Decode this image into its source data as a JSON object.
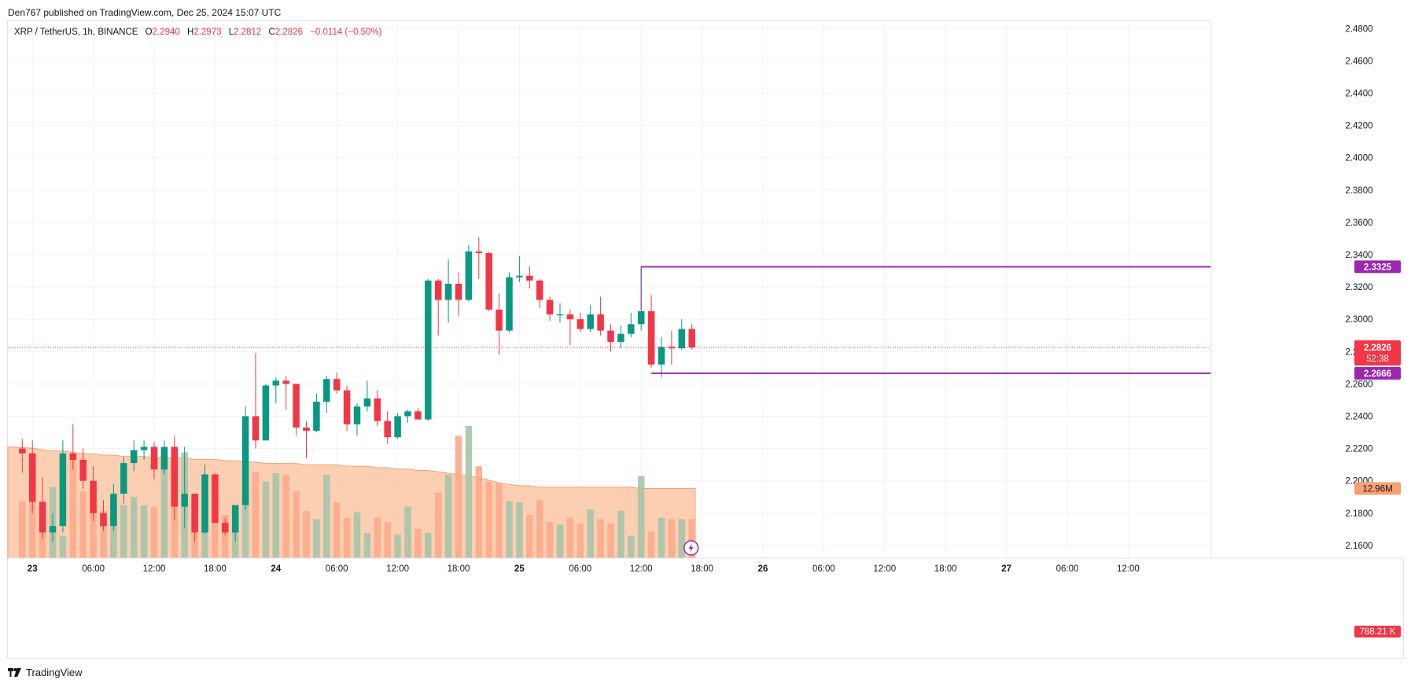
{
  "header": {
    "published_by": "Den767 published on TradingView.com, Dec 25, 2024 15:07 UTC"
  },
  "legend": {
    "symbol": "XRP / TetherUS, 1h, BINANCE",
    "o_label": "O",
    "o_value": "2.2940",
    "h_label": "H",
    "h_value": "2.2973",
    "l_label": "L",
    "l_value": "2.2812",
    "c_label": "C",
    "c_value": "2.2826",
    "change": "−0.0114 (−0.50%)"
  },
  "footer": {
    "brand": "TradingView",
    "logo_icon": "tradingview-logo-icon"
  },
  "colors": {
    "up": "#089981",
    "down": "#f23645",
    "level_line": "#9c27b0",
    "volume_up": "#a7c4a8",
    "volume_down": "#fcab8a",
    "volume_ma_fill": "#fcc7a6",
    "grid": "#f0f3fa",
    "price_line": "#f23645"
  },
  "chart_data": {
    "type": "candlestick",
    "symbol": "XRP / TetherUS",
    "timeframe": "1h",
    "exchange": "BINANCE",
    "y_ticks": [
      "2.1600",
      "2.1800",
      "2.2000",
      "2.2200",
      "2.2400",
      "2.2600",
      "2.2800",
      "2.3000",
      "2.3200",
      "2.3400",
      "2.3600",
      "2.3800",
      "2.4000",
      "2.4200",
      "2.4400",
      "2.4600",
      "2.4800"
    ],
    "ylim": [
      2.16,
      2.48
    ],
    "x_ticks": [
      {
        "label": "23",
        "bar": 1
      },
      {
        "label": "06:00",
        "bar": 7
      },
      {
        "label": "12:00",
        "bar": 13
      },
      {
        "label": "18:00",
        "bar": 19
      },
      {
        "label": "24",
        "bar": 25
      },
      {
        "label": "06:00",
        "bar": 31
      },
      {
        "label": "12:00",
        "bar": 37
      },
      {
        "label": "18:00",
        "bar": 43
      },
      {
        "label": "25",
        "bar": 49
      },
      {
        "label": "06:00",
        "bar": 55
      },
      {
        "label": "12:00",
        "bar": 61
      },
      {
        "label": "18:00",
        "bar": 67
      },
      {
        "label": "26",
        "bar": 73
      },
      {
        "label": "06:00",
        "bar": 79
      },
      {
        "label": "12:00",
        "bar": 85
      },
      {
        "label": "18:00",
        "bar": 91
      },
      {
        "label": "27",
        "bar": 97
      },
      {
        "label": "06:00",
        "bar": 103
      },
      {
        "label": "12:00",
        "bar": 109
      }
    ],
    "candles": [
      {
        "o": 2.22,
        "h": 2.226,
        "l": 2.205,
        "c": 2.217
      },
      {
        "o": 2.217,
        "h": 2.225,
        "l": 2.18,
        "c": 2.187
      },
      {
        "o": 2.187,
        "h": 2.202,
        "l": 2.164,
        "c": 2.168
      },
      {
        "o": 2.168,
        "h": 2.18,
        "l": 2.162,
        "c": 2.172
      },
      {
        "o": 2.172,
        "h": 2.225,
        "l": 2.168,
        "c": 2.217
      },
      {
        "o": 2.217,
        "h": 2.235,
        "l": 2.207,
        "c": 2.213
      },
      {
        "o": 2.213,
        "h": 2.22,
        "l": 2.195,
        "c": 2.2
      },
      {
        "o": 2.2,
        "h": 2.209,
        "l": 2.175,
        "c": 2.18
      },
      {
        "o": 2.18,
        "h": 2.188,
        "l": 2.169,
        "c": 2.172
      },
      {
        "o": 2.172,
        "h": 2.198,
        "l": 2.169,
        "c": 2.192
      },
      {
        "o": 2.192,
        "h": 2.215,
        "l": 2.186,
        "c": 2.211
      },
      {
        "o": 2.211,
        "h": 2.225,
        "l": 2.206,
        "c": 2.219
      },
      {
        "o": 2.219,
        "h": 2.225,
        "l": 2.213,
        "c": 2.221
      },
      {
        "o": 2.221,
        "h": 2.224,
        "l": 2.201,
        "c": 2.207
      },
      {
        "o": 2.207,
        "h": 2.225,
        "l": 2.204,
        "c": 2.221
      },
      {
        "o": 2.221,
        "h": 2.228,
        "l": 2.176,
        "c": 2.184
      },
      {
        "o": 2.184,
        "h": 2.221,
        "l": 2.171,
        "c": 2.192
      },
      {
        "o": 2.192,
        "h": 2.192,
        "l": 2.162,
        "c": 2.168
      },
      {
        "o": 2.168,
        "h": 2.21,
        "l": 2.167,
        "c": 2.204
      },
      {
        "o": 2.204,
        "h": 2.205,
        "l": 2.174,
        "c": 2.174
      },
      {
        "o": 2.174,
        "h": 2.177,
        "l": 2.166,
        "c": 2.168
      },
      {
        "o": 2.168,
        "h": 2.185,
        "l": 2.162,
        "c": 2.185
      },
      {
        "o": 2.185,
        "h": 2.246,
        "l": 2.182,
        "c": 2.24
      },
      {
        "o": 2.24,
        "h": 2.279,
        "l": 2.22,
        "c": 2.225
      },
      {
        "o": 2.225,
        "h": 2.26,
        "l": 2.225,
        "c": 2.259
      },
      {
        "o": 2.259,
        "h": 2.264,
        "l": 2.248,
        "c": 2.262
      },
      {
        "o": 2.262,
        "h": 2.265,
        "l": 2.244,
        "c": 2.26
      },
      {
        "o": 2.26,
        "h": 2.26,
        "l": 2.228,
        "c": 2.233
      },
      {
        "o": 2.233,
        "h": 2.237,
        "l": 2.214,
        "c": 2.231
      },
      {
        "o": 2.231,
        "h": 2.254,
        "l": 2.23,
        "c": 2.249
      },
      {
        "o": 2.249,
        "h": 2.265,
        "l": 2.242,
        "c": 2.263
      },
      {
        "o": 2.263,
        "h": 2.267,
        "l": 2.254,
        "c": 2.256
      },
      {
        "o": 2.256,
        "h": 2.259,
        "l": 2.231,
        "c": 2.235
      },
      {
        "o": 2.235,
        "h": 2.248,
        "l": 2.228,
        "c": 2.246
      },
      {
        "o": 2.246,
        "h": 2.262,
        "l": 2.243,
        "c": 2.251
      },
      {
        "o": 2.251,
        "h": 2.256,
        "l": 2.234,
        "c": 2.237
      },
      {
        "o": 2.237,
        "h": 2.243,
        "l": 2.223,
        "c": 2.227
      },
      {
        "o": 2.227,
        "h": 2.242,
        "l": 2.226,
        "c": 2.24
      },
      {
        "o": 2.24,
        "h": 2.244,
        "l": 2.236,
        "c": 2.243
      },
      {
        "o": 2.243,
        "h": 2.245,
        "l": 2.238,
        "c": 2.238
      },
      {
        "o": 2.238,
        "h": 2.325,
        "l": 2.237,
        "c": 2.324
      },
      {
        "o": 2.324,
        "h": 2.325,
        "l": 2.29,
        "c": 2.312
      },
      {
        "o": 2.312,
        "h": 2.337,
        "l": 2.298,
        "c": 2.322
      },
      {
        "o": 2.322,
        "h": 2.329,
        "l": 2.302,
        "c": 2.312
      },
      {
        "o": 2.312,
        "h": 2.346,
        "l": 2.311,
        "c": 2.342
      },
      {
        "o": 2.342,
        "h": 2.351,
        "l": 2.325,
        "c": 2.341
      },
      {
        "o": 2.341,
        "h": 2.342,
        "l": 2.305,
        "c": 2.306
      },
      {
        "o": 2.306,
        "h": 2.316,
        "l": 2.278,
        "c": 2.293
      },
      {
        "o": 2.293,
        "h": 2.329,
        "l": 2.292,
        "c": 2.326
      },
      {
        "o": 2.326,
        "h": 2.339,
        "l": 2.323,
        "c": 2.327
      },
      {
        "o": 2.327,
        "h": 2.333,
        "l": 2.319,
        "c": 2.324
      },
      {
        "o": 2.324,
        "h": 2.325,
        "l": 2.307,
        "c": 2.312
      },
      {
        "o": 2.312,
        "h": 2.314,
        "l": 2.299,
        "c": 2.303
      },
      {
        "o": 2.303,
        "h": 2.31,
        "l": 2.298,
        "c": 2.303
      },
      {
        "o": 2.303,
        "h": 2.306,
        "l": 2.284,
        "c": 2.3
      },
      {
        "o": 2.3,
        "h": 2.304,
        "l": 2.292,
        "c": 2.294
      },
      {
        "o": 2.294,
        "h": 2.309,
        "l": 2.292,
        "c": 2.303
      },
      {
        "o": 2.303,
        "h": 2.314,
        "l": 2.29,
        "c": 2.293
      },
      {
        "o": 2.293,
        "h": 2.297,
        "l": 2.28,
        "c": 2.286
      },
      {
        "o": 2.286,
        "h": 2.296,
        "l": 2.282,
        "c": 2.291
      },
      {
        "o": 2.291,
        "h": 2.304,
        "l": 2.289,
        "c": 2.297
      },
      {
        "o": 2.297,
        "h": 2.3325,
        "l": 2.293,
        "c": 2.305
      },
      {
        "o": 2.305,
        "h": 2.315,
        "l": 2.27,
        "c": 2.272
      },
      {
        "o": 2.272,
        "h": 2.289,
        "l": 2.264,
        "c": 2.283
      },
      {
        "o": 2.283,
        "h": 2.293,
        "l": 2.272,
        "c": 2.282
      },
      {
        "o": 2.282,
        "h": 2.3,
        "l": 2.281,
        "c": 2.294
      },
      {
        "o": 2.294,
        "h": 2.2973,
        "l": 2.2812,
        "c": 2.2826
      }
    ],
    "volume_ratio": [
      0.41,
      0.56,
      0.35,
      0.51,
      0.16,
      0.74,
      0.48,
      0.36,
      0.34,
      0.39,
      0.38,
      0.44,
      0.38,
      0.37,
      0.74,
      0.66,
      0.76,
      0.43,
      0.35,
      0.47,
      0.31,
      0.38,
      0.46,
      0.62,
      0.55,
      0.61,
      0.6,
      0.48,
      0.34,
      0.28,
      0.6,
      0.4,
      0.29,
      0.33,
      0.18,
      0.29,
      0.26,
      0.17,
      0.37,
      0.21,
      0.18,
      0.47,
      0.6,
      0.88,
      0.95,
      0.66,
      0.55,
      0.54,
      0.41,
      0.4,
      0.31,
      0.42,
      0.26,
      0.24,
      0.29,
      0.25,
      0.35,
      0.28,
      0.25,
      0.34,
      0.16,
      0.59,
      0.19,
      0.29,
      0.28,
      0.28,
      0.28
    ],
    "volume_ma_ratio": [
      0.8,
      0.79,
      0.78,
      0.77,
      0.77,
      0.76,
      0.75,
      0.75,
      0.74,
      0.74,
      0.73,
      0.73,
      0.73,
      0.72,
      0.72,
      0.72,
      0.72,
      0.71,
      0.71,
      0.71,
      0.7,
      0.7,
      0.69,
      0.69,
      0.68,
      0.68,
      0.68,
      0.68,
      0.67,
      0.67,
      0.67,
      0.67,
      0.66,
      0.66,
      0.66,
      0.65,
      0.65,
      0.64,
      0.64,
      0.63,
      0.63,
      0.62,
      0.61,
      0.6,
      0.59,
      0.58,
      0.56,
      0.54,
      0.53,
      0.52,
      0.52,
      0.51,
      0.51,
      0.51,
      0.51,
      0.51,
      0.51,
      0.51,
      0.51,
      0.51,
      0.51,
      0.5,
      0.5,
      0.5,
      0.5,
      0.5,
      0.5
    ],
    "levels": [
      {
        "price": 2.3325,
        "label": "2.3325",
        "start_bar": 61
      },
      {
        "price": 2.2666,
        "label": "2.2666",
        "start_bar": 62
      }
    ],
    "last_price": {
      "price": 2.2826,
      "label": "2.2826",
      "countdown": "52:38"
    },
    "volume_labels": {
      "ma": "12.96M",
      "current": "788.21 K"
    },
    "alert_icon": "lightning-icon"
  }
}
